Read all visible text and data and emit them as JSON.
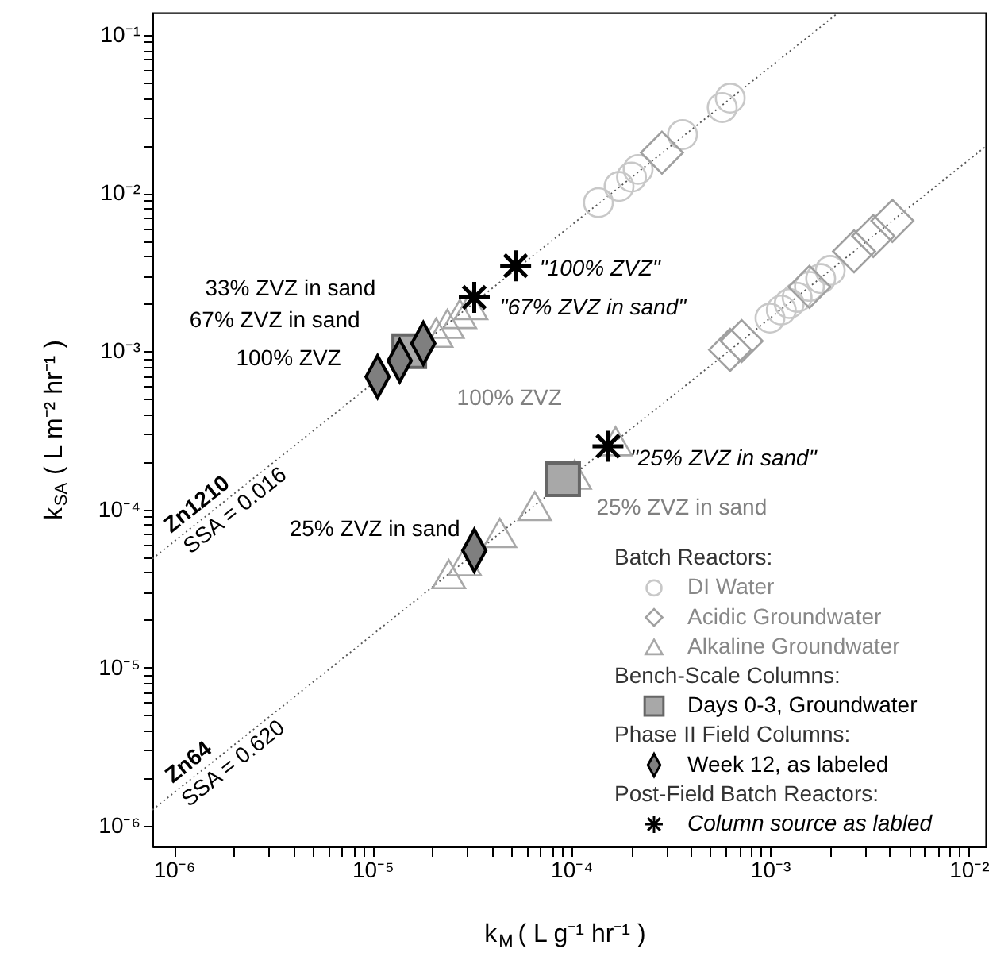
{
  "chart_data": {
    "type": "scatter",
    "log": "xy",
    "xlabel": "k$_{M}$ ( L g⁻¹ hr⁻¹ )",
    "ylabel": "k$_{SA}$ ( L m⁻² hr⁻¹ )",
    "xlim": [
      7.8e-07,
      0.0122
    ],
    "ylim": [
      7.4e-07,
      0.138
    ],
    "xticks": [
      {
        "value": 1e-06,
        "label": "10⁻⁶"
      },
      {
        "value": 2e-06,
        "label": null
      },
      {
        "value": 3e-06,
        "label": null
      },
      {
        "value": 4e-06,
        "label": null
      },
      {
        "value": 5e-06,
        "label": null
      },
      {
        "value": 6e-06,
        "label": null
      },
      {
        "value": 7e-06,
        "label": null
      },
      {
        "value": 8e-06,
        "label": null
      },
      {
        "value": 9e-06,
        "label": null
      },
      {
        "value": 1e-05,
        "label": "10⁻⁵"
      },
      {
        "value": 2e-05,
        "label": null
      },
      {
        "value": 3e-05,
        "label": null
      },
      {
        "value": 4e-05,
        "label": null
      },
      {
        "value": 5e-05,
        "label": null
      },
      {
        "value": 6e-05,
        "label": null
      },
      {
        "value": 7e-05,
        "label": null
      },
      {
        "value": 8e-05,
        "label": null
      },
      {
        "value": 9e-05,
        "label": null
      },
      {
        "value": 0.0001,
        "label": "10⁻⁴"
      },
      {
        "value": 0.0002,
        "label": null
      },
      {
        "value": 0.0003,
        "label": null
      },
      {
        "value": 0.0004,
        "label": null
      },
      {
        "value": 0.0005,
        "label": null
      },
      {
        "value": 0.0006,
        "label": null
      },
      {
        "value": 0.0007,
        "label": null
      },
      {
        "value": 0.0008,
        "label": null
      },
      {
        "value": 0.0009,
        "label": null
      },
      {
        "value": 0.001,
        "label": "10⁻³"
      },
      {
        "value": 0.002,
        "label": null
      },
      {
        "value": 0.003,
        "label": null
      },
      {
        "value": 0.004,
        "label": null
      },
      {
        "value": 0.005,
        "label": null
      },
      {
        "value": 0.006,
        "label": null
      },
      {
        "value": 0.007,
        "label": null
      },
      {
        "value": 0.008,
        "label": null
      },
      {
        "value": 0.009,
        "label": null
      },
      {
        "value": 0.01,
        "label": "10⁻²"
      }
    ],
    "yticks": [
      {
        "value": 1e-06,
        "label": "10⁻⁶"
      },
      {
        "value": 2e-06,
        "label": null
      },
      {
        "value": 3e-06,
        "label": null
      },
      {
        "value": 4e-06,
        "label": null
      },
      {
        "value": 5e-06,
        "label": null
      },
      {
        "value": 6e-06,
        "label": null
      },
      {
        "value": 7e-06,
        "label": null
      },
      {
        "value": 8e-06,
        "label": null
      },
      {
        "value": 9e-06,
        "label": null
      },
      {
        "value": 1e-05,
        "label": "10⁻⁵"
      },
      {
        "value": 2e-05,
        "label": null
      },
      {
        "value": 3e-05,
        "label": null
      },
      {
        "value": 4e-05,
        "label": null
      },
      {
        "value": 5e-05,
        "label": null
      },
      {
        "value": 6e-05,
        "label": null
      },
      {
        "value": 7e-05,
        "label": null
      },
      {
        "value": 8e-05,
        "label": null
      },
      {
        "value": 9e-05,
        "label": null
      },
      {
        "value": 0.0001,
        "label": "10⁻⁴"
      },
      {
        "value": 0.0002,
        "label": null
      },
      {
        "value": 0.0003,
        "label": null
      },
      {
        "value": 0.0004,
        "label": null
      },
      {
        "value": 0.0005,
        "label": null
      },
      {
        "value": 0.0006,
        "label": null
      },
      {
        "value": 0.0007,
        "label": null
      },
      {
        "value": 0.0008,
        "label": null
      },
      {
        "value": 0.0009,
        "label": null
      },
      {
        "value": 0.001,
        "label": "10⁻³"
      },
      {
        "value": 0.002,
        "label": null
      },
      {
        "value": 0.003,
        "label": null
      },
      {
        "value": 0.004,
        "label": null
      },
      {
        "value": 0.005,
        "label": null
      },
      {
        "value": 0.006,
        "label": null
      },
      {
        "value": 0.007,
        "label": null
      },
      {
        "value": 0.008,
        "label": null
      },
      {
        "value": 0.009,
        "label": null
      },
      {
        "value": 0.01,
        "label": "10⁻²"
      },
      {
        "value": 0.02,
        "label": null
      },
      {
        "value": 0.03,
        "label": null
      },
      {
        "value": 0.04,
        "label": null
      },
      {
        "value": 0.05,
        "label": null
      },
      {
        "value": 0.06,
        "label": null
      },
      {
        "value": 0.07,
        "label": null
      },
      {
        "value": 0.08,
        "label": null
      },
      {
        "value": 0.09,
        "label": null
      },
      {
        "value": 0.1,
        "label": "10⁻¹"
      }
    ],
    "legend": "bottom right",
    "series": [
      {
        "type": "line",
        "color": "#555555",
        "line_style": "dotted",
        "x": [
          7.8e-07,
          0.0022
        ],
        "values": [
          4.875e-05,
          0.1375
        ]
      },
      {
        "type": "line",
        "color": "#555555",
        "line_style": "dotted",
        "x": [
          7.8e-07,
          0.0122
        ],
        "values": [
          1.26e-06,
          0.0197
        ]
      },
      {
        "name": "DI Water",
        "color": "#c8c8c8",
        "marker": "circle",
        "x": [
          0.000137,
          0.000174,
          0.000201,
          0.000217,
          0.000363,
          0.000575,
          0.000631,
          0.001,
          0.00114,
          0.00125,
          0.00137,
          0.00158,
          0.0018,
          0.00201
        ],
        "values": [
          0.0087,
          0.011,
          0.0126,
          0.0141,
          0.0234,
          0.0347,
          0.0398,
          0.00162,
          0.00182,
          0.002,
          0.00219,
          0.00257,
          0.00288,
          0.00324
        ]
      },
      {
        "name": "Acidic Groundwater",
        "color": "#a0a0a0",
        "marker": "diamond",
        "x": [
          0.000286,
          0.00063,
          0.00072,
          0.00158,
          0.00265,
          0.00331,
          0.00413
        ],
        "values": [
          0.018,
          0.00102,
          0.00116,
          0.00255,
          0.00428,
          0.00535,
          0.00667
        ]
      },
      {
        "name": "Alkaline Groundwater",
        "color": "#a8a8a8",
        "marker": "triangle",
        "x": [
          2.09e-05,
          2.38e-05,
          2.75e-05,
          3.13e-05,
          2.42e-05,
          2.91e-05,
          4.37e-05,
          6.55e-05,
          0.000104,
          0.000167
        ],
        "values": [
          0.00131,
          0.00149,
          0.00172,
          0.00196,
          3.9e-05,
          4.7e-05,
          7.1e-05,
          0.000105,
          0.000166,
          0.00027
        ]
      },
      {
        "name": "Days 0-3, Groundwater",
        "color": "#a8a8a8",
        "marker": "square",
        "x": [
          1.53e-05,
          9.1e-05
        ],
        "values": [
          0.001,
          0.000155
        ]
      },
      {
        "name": "Week 12, as labeled",
        "color": "#7f7f7f",
        "marker": "diamond",
        "x": [
          1.06e-05,
          1.37e-05,
          1.8e-05,
          3.25e-05
        ],
        "values": [
          0.00069,
          0.00087,
          0.00112,
          5.5e-05
        ]
      },
      {
        "name": "Column source as labled",
        "color": "#000000",
        "marker": "cross",
        "x": [
          5.25e-05,
          3.25e-05,
          0.000153
        ],
        "values": [
          0.00347,
          0.00219,
          0.000251
        ]
      }
    ],
    "annotations": [
      {
        "text": "Zn1210",
        "x": 1.45e-06,
        "y": 9.1e-05
      },
      {
        "text": "SSA = 0.016",
        "x": 1.84e-06,
        "y": 0.000115
      },
      {
        "text": "Zn64",
        "x": 1.32e-06,
        "y": 2.13e-06
      },
      {
        "text": "SSA = 0.620",
        "x": 1.8e-06,
        "y": 2.9e-06
      },
      {
        "text": "100% ZVZ",
        "x": 1.53e-05,
        "y": 0.001
      },
      {
        "text": "25% ZVZ in sand",
        "x": 9.1e-05,
        "y": 0.000155
      },
      {
        "text": "100% ZVZ",
        "x": 1.06e-05,
        "y": 0.00069
      },
      {
        "text": "67% ZVZ in sand",
        "x": 1.37e-05,
        "y": 0.00087
      },
      {
        "text": "33% ZVZ in sand",
        "x": 1.8e-05,
        "y": 0.00112
      },
      {
        "text": "25% ZVZ in sand",
        "x": 3.25e-05,
        "y": 5.5e-05
      },
      {
        "text": "\"100% ZVZ\"",
        "x": 5.25e-05,
        "y": 0.00347
      },
      {
        "text": "\"67% ZVZ in sand\"",
        "x": 3.25e-05,
        "y": 0.00219
      },
      {
        "text": "\"25% ZVZ in sand\"",
        "x": 0.000153,
        "y": 0.000251
      },
      "Batch Reactors:",
      "Bench-Scale Columns:",
      "Phase II Field Columns:",
      "Post-Field Batch Reactors:"
    ]
  }
}
